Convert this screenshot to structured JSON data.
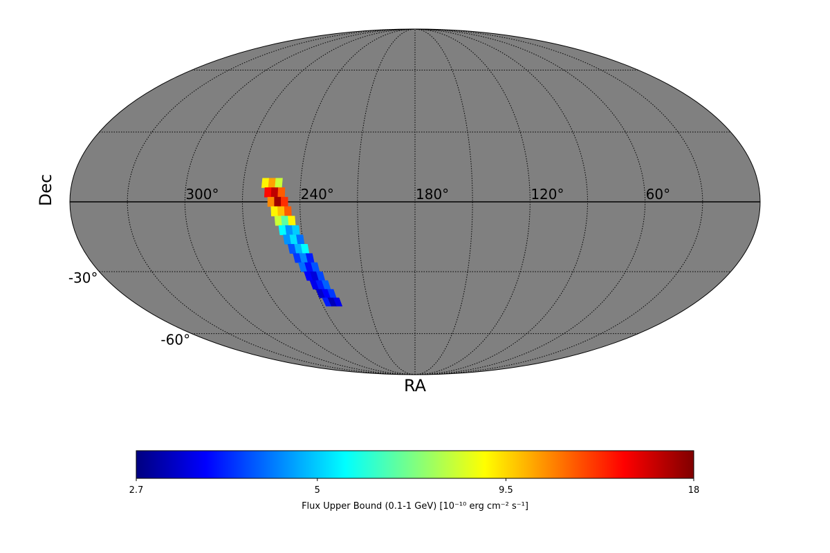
{
  "chart_data": {
    "type": "skymap",
    "projection": "mollweide",
    "x_label": "RA",
    "y_label": "Dec",
    "background_color": "#808080",
    "xticks": [
      {
        "value": 300,
        "label": "300°"
      },
      {
        "value": 240,
        "label": "240°"
      },
      {
        "value": 180,
        "label": "180°"
      },
      {
        "value": 120,
        "label": "120°"
      },
      {
        "value": 60,
        "label": "60°"
      }
    ],
    "yticks": [
      {
        "value": -30,
        "label": "-30°"
      },
      {
        "value": -60,
        "label": "-60°"
      }
    ],
    "meridians": [
      30,
      60,
      90,
      120,
      150,
      180,
      210,
      240,
      270,
      300,
      330
    ],
    "parallels": [
      -60,
      -30,
      0,
      30,
      60
    ],
    "colormap": "jet",
    "color_scale": "log",
    "clim": [
      2.7,
      18
    ],
    "cticks": [
      2.7,
      5,
      9.5,
      18
    ],
    "colorbar_label": "Flux Upper Bound (0.1-1 GeV) [10⁻¹⁰ erg cm⁻² s⁻¹]",
    "ra": [
      258.5,
      255,
      251.5,
      256.8,
      253.3,
      249.8,
      255.1,
      251.6,
      248.1,
      253.4,
      249.9,
      246.4,
      251.7,
      248.2,
      244.7,
      250,
      246.5,
      243,
      248.3,
      244.8,
      241.3,
      246.6,
      243.1,
      239.6,
      244.9,
      241.4,
      237.9,
      243.2,
      239.7,
      236.2,
      241.5,
      238,
      234.5,
      239.8,
      236.3,
      232.8,
      238.1,
      234.6,
      231.1,
      236.4,
      232.9,
      229.4
    ],
    "dec": [
      8,
      8,
      8,
      4,
      4,
      4,
      0,
      0,
      0,
      -4,
      -4,
      -4,
      -8,
      -8,
      -8,
      -12,
      -12,
      -12,
      -16,
      -16,
      -16,
      -20,
      -20,
      -20,
      -24,
      -24,
      -24,
      -28,
      -28,
      -28,
      -32,
      -32,
      -32,
      -36,
      -36,
      -36,
      -40,
      -40,
      -40,
      -44,
      -44,
      -44
    ],
    "values": [
      9,
      10.5,
      8,
      14,
      16,
      12,
      11,
      17,
      13,
      9,
      10,
      12,
      8,
      6.5,
      9,
      5.5,
      4.5,
      5,
      4.5,
      5.2,
      4.2,
      4,
      4.8,
      5.5,
      3.8,
      4.4,
      3.6,
      4.2,
      3.5,
      4,
      3.4,
      3.2,
      3.9,
      3.3,
      3.6,
      4.1,
      3.1,
      3.4,
      3.8,
      3.6,
      3,
      3.3
    ]
  }
}
